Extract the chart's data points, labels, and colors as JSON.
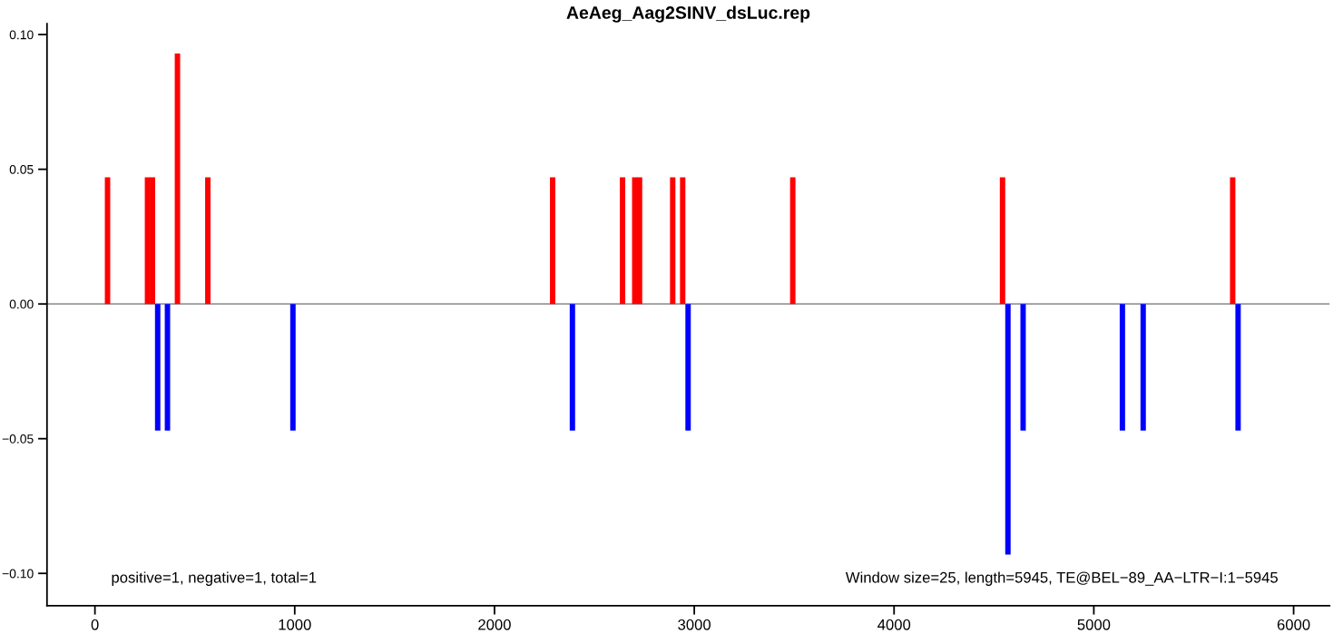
{
  "chart_data": {
    "type": "bar",
    "title": "AeAeg_Aag2SINV_dsLuc.rep",
    "series": [
      {
        "color": "#ff0000",
        "x": [
          63,
          263,
          288,
          413,
          565,
          2291,
          2641,
          2702,
          2726,
          2892,
          2942,
          3493,
          4543,
          5695
        ],
        "values": [
          0.047,
          0.047,
          0.047,
          0.093,
          0.047,
          0.047,
          0.047,
          0.047,
          0.047,
          0.047,
          0.047,
          0.047,
          0.047,
          0.047
        ]
      },
      {
        "color": "#0000ff",
        "x": [
          314,
          363,
          991,
          2390,
          2969,
          4570,
          4646,
          5143,
          5247,
          5722
        ],
        "values": [
          -0.047,
          -0.047,
          -0.047,
          -0.047,
          -0.047,
          -0.093,
          -0.047,
          -0.047,
          -0.047,
          -0.047
        ]
      }
    ],
    "xlim": [
      -240,
      6180
    ],
    "ylim": [
      -0.112,
      0.104
    ],
    "xticks": [
      0,
      1000,
      2000,
      3000,
      4000,
      5000,
      6000
    ],
    "yticks": [
      {
        "value": -0.1,
        "label": "−0.10"
      },
      {
        "value": -0.05,
        "label": "−0.05"
      },
      {
        "value": 0,
        "label": "0.00"
      },
      {
        "value": 0.05,
        "label": "0.05"
      },
      {
        "value": 0.1,
        "label": "0.10"
      }
    ],
    "ref_lines": [
      {
        "axis": "y",
        "value": 0,
        "color": "#999999"
      }
    ],
    "annotations": [
      {
        "text": "positive=1, negative=1, total=1"
      },
      {
        "text": "Window size=25, length=5945, TE@BEL−89_AA−LTR−I:1−5945"
      }
    ],
    "grid": false,
    "legend": false
  }
}
